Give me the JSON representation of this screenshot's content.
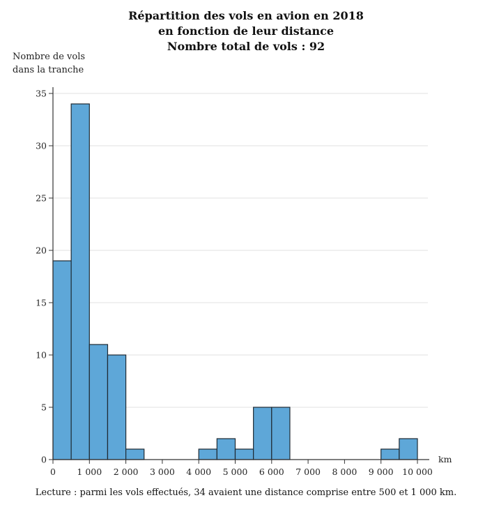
{
  "chart_data": {
    "type": "bar",
    "title_lines": [
      "Répartition des vols en avion en 2018",
      "en fonction de leur distance",
      "Nombre total de vols : 92"
    ],
    "ylabel_lines": [
      "Nombre de vols",
      "dans la tranche"
    ],
    "xunit": "km",
    "note": "Lecture : parmi les vols effectués, 34 avaient une distance comprise entre 500 et 1 000 km.",
    "bin_width": 500,
    "bins_start": [
      0,
      500,
      1000,
      1500,
      2000,
      2500,
      3000,
      3500,
      4000,
      4500,
      5000,
      5500,
      6000,
      6500,
      7000,
      7500,
      8000,
      8500,
      9000,
      9500
    ],
    "values": [
      19,
      34,
      11,
      10,
      1,
      0,
      0,
      0,
      1,
      2,
      1,
      5,
      5,
      0,
      0,
      0,
      0,
      0,
      1,
      2
    ],
    "xlim": [
      0,
      10000
    ],
    "ylim": [
      0,
      36
    ],
    "x_ticks": [
      0,
      1000,
      2000,
      3000,
      4000,
      5000,
      6000,
      7000,
      8000,
      9000,
      10000
    ],
    "x_tick_labels": [
      "0",
      "1 000",
      "2 000",
      "3 000",
      "4 000",
      "5 000",
      "6 000",
      "7 000",
      "8 000",
      "9 000",
      "10 000"
    ],
    "y_ticks": [
      0,
      5,
      10,
      15,
      20,
      25,
      30,
      35
    ],
    "y_tick_labels": [
      "0",
      "5",
      "10",
      "15",
      "20",
      "25",
      "30",
      "35"
    ],
    "grid": true,
    "colors": {
      "bar": "#5ea7d8",
      "bar_edge": "#1f2a33",
      "grid": "#e2e2e2",
      "axis": "#333333"
    }
  }
}
